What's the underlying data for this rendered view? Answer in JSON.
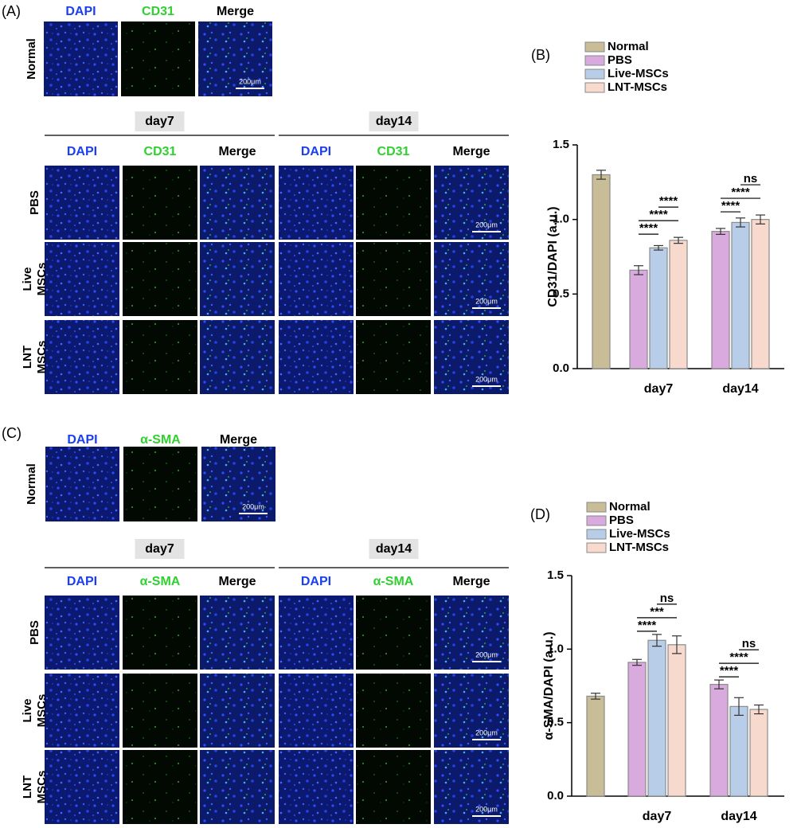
{
  "panel_a": {
    "label": "(A)",
    "normal": {
      "row_label": "Normal",
      "columns": [
        "DAPI",
        "CD31",
        "Merge"
      ]
    },
    "groups": [
      {
        "title": "day7",
        "columns": [
          "DAPI",
          "CD31",
          "Merge"
        ]
      },
      {
        "title": "day14",
        "columns": [
          "DAPI",
          "CD31",
          "Merge"
        ]
      }
    ],
    "rows": [
      [
        "PBS"
      ],
      [
        "Live",
        "MSCs"
      ],
      [
        "LNT",
        "MSCs"
      ]
    ],
    "scale_bar": "200μm"
  },
  "panel_c": {
    "label": "(C)",
    "normal": {
      "row_label": "Normal",
      "columns": [
        "DAPI",
        "α-SMA",
        "Merge"
      ]
    },
    "groups": [
      {
        "title": "day7",
        "columns": [
          "DAPI",
          "α-SMA",
          "Merge"
        ]
      },
      {
        "title": "day14",
        "columns": [
          "DAPI",
          "α-SMA",
          "Merge"
        ]
      }
    ],
    "rows": [
      [
        "PBS"
      ],
      [
        "Live",
        "MSCs"
      ],
      [
        "LNT",
        "MSCs"
      ]
    ],
    "scale_bar": "200μm"
  },
  "chart_data": [
    {
      "type": "bar",
      "panel_label": "(B)",
      "y_label": "CD31/DAPI (a.u.)",
      "categories": [
        null,
        "day7",
        "day14"
      ],
      "series": [
        {
          "name": "Normal",
          "color": "#c9bd98",
          "values": [
            1.3,
            null,
            null
          ],
          "errors": [
            0.03,
            null,
            null
          ]
        },
        {
          "name": "PBS",
          "color": "#d9aadd",
          "values": [
            null,
            0.66,
            0.92
          ],
          "errors": [
            null,
            0.03,
            0.02
          ]
        },
        {
          "name": "Live-MSCs",
          "color": "#b8cde8",
          "values": [
            null,
            0.81,
            0.98
          ],
          "errors": [
            null,
            0.015,
            0.03
          ]
        },
        {
          "name": "LNT-MSCs",
          "color": "#f8d9cd",
          "values": [
            null,
            0.86,
            1.0
          ],
          "errors": [
            null,
            0.02,
            0.03
          ]
        }
      ],
      "ylim": [
        0,
        1.5
      ],
      "yticks": [
        {
          "value": 0,
          "label": "0.0"
        },
        0.5,
        {
          "value": 1,
          "label": "1.0"
        },
        1.5
      ],
      "annotations": [
        {
          "category": "day7",
          "from": "PBS",
          "to": "Live-MSCs",
          "label": "****"
        },
        {
          "category": "day7",
          "from": "PBS",
          "to": "LNT-MSCs",
          "label": "****"
        },
        {
          "category": "day7",
          "from": "Live-MSCs",
          "to": "LNT-MSCs",
          "label": "****"
        },
        {
          "category": "day14",
          "from": "PBS",
          "to": "Live-MSCs",
          "label": "****"
        },
        {
          "category": "day14",
          "from": "PBS",
          "to": "LNT-MSCs",
          "label": "****"
        },
        {
          "category": "day14",
          "from": "Live-MSCs",
          "to": "LNT-MSCs",
          "label": "ns"
        }
      ]
    },
    {
      "type": "bar",
      "panel_label": "(D)",
      "y_label": "α-SMA/DAPI (a.u.)",
      "categories": [
        null,
        "day7",
        "day14"
      ],
      "series": [
        {
          "name": "Normal",
          "color": "#c9bd98",
          "values": [
            0.68,
            null,
            null
          ],
          "errors": [
            0.02,
            null,
            null
          ]
        },
        {
          "name": "PBS",
          "color": "#d9aadd",
          "values": [
            null,
            0.91,
            0.76
          ],
          "errors": [
            null,
            0.02,
            0.03
          ]
        },
        {
          "name": "Live-MSCs",
          "color": "#b8cde8",
          "values": [
            null,
            1.06,
            0.61
          ],
          "errors": [
            null,
            0.04,
            0.06
          ]
        },
        {
          "name": "LNT-MSCs",
          "color": "#f8d9cd",
          "values": [
            null,
            1.03,
            0.59
          ],
          "errors": [
            null,
            0.06,
            0.03
          ]
        }
      ],
      "ylim": [
        0,
        1.5
      ],
      "yticks": [
        {
          "value": 0,
          "label": "0.0"
        },
        0.5,
        {
          "value": 1,
          "label": "1.0"
        },
        1.5
      ],
      "annotations": [
        {
          "category": "day7",
          "from": "PBS",
          "to": "Live-MSCs",
          "label": "****"
        },
        {
          "category": "day7",
          "from": "PBS",
          "to": "LNT-MSCs",
          "label": "***"
        },
        {
          "category": "day7",
          "from": "Live-MSCs",
          "to": "LNT-MSCs",
          "label": "ns"
        },
        {
          "category": "day14",
          "from": "PBS",
          "to": "Live-MSCs",
          "label": "****"
        },
        {
          "category": "day14",
          "from": "PBS",
          "to": "LNT-MSCs",
          "label": "****"
        },
        {
          "category": "day14",
          "from": "Live-MSCs",
          "to": "LNT-MSCs",
          "label": "ns"
        }
      ]
    }
  ]
}
